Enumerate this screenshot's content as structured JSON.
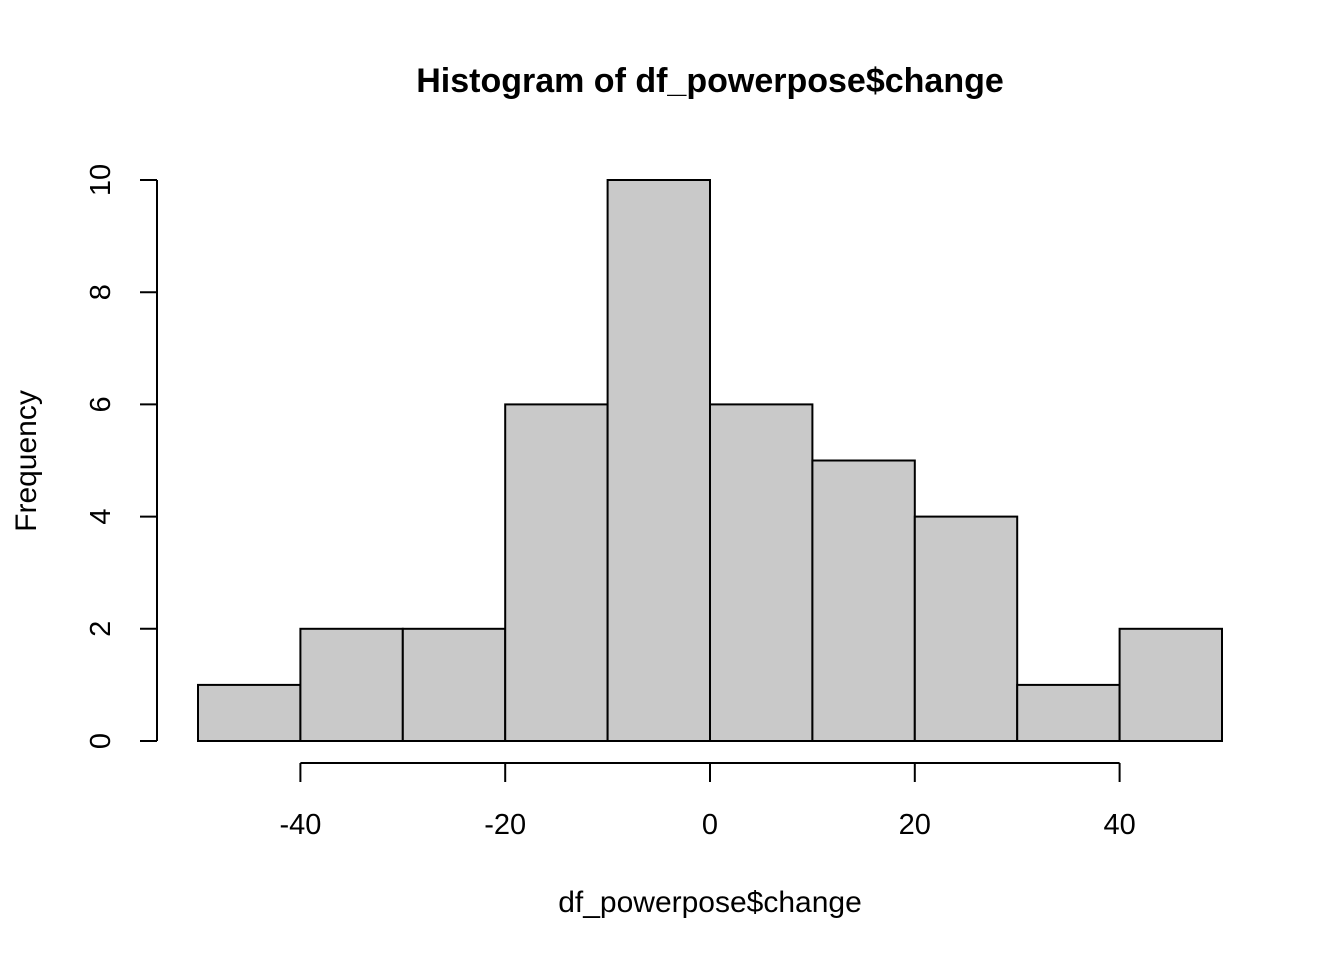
{
  "chart_data": {
    "type": "bar",
    "title": "Histogram of df_powerpose$change",
    "xlabel": "df_powerpose$change",
    "ylabel": "Frequency",
    "bin_edges": [
      -50,
      -40,
      -30,
      -20,
      -10,
      0,
      10,
      20,
      30,
      40,
      50
    ],
    "values": [
      1,
      2,
      2,
      6,
      10,
      6,
      5,
      4,
      1,
      2
    ],
    "x_ticks": [
      -40,
      -20,
      0,
      20,
      40
    ],
    "x_tick_labels": [
      "-40",
      "-20",
      "0",
      "20",
      "40"
    ],
    "y_ticks": [
      0,
      2,
      4,
      6,
      8,
      10
    ],
    "y_tick_labels": [
      "0",
      "2",
      "4",
      "6",
      "8",
      "10"
    ],
    "xlim": [
      -50,
      50
    ],
    "ylim": [
      0,
      10
    ],
    "grid": false,
    "legend": "none",
    "bar_color": "#C9C9C9",
    "edge_color": "#000000"
  }
}
